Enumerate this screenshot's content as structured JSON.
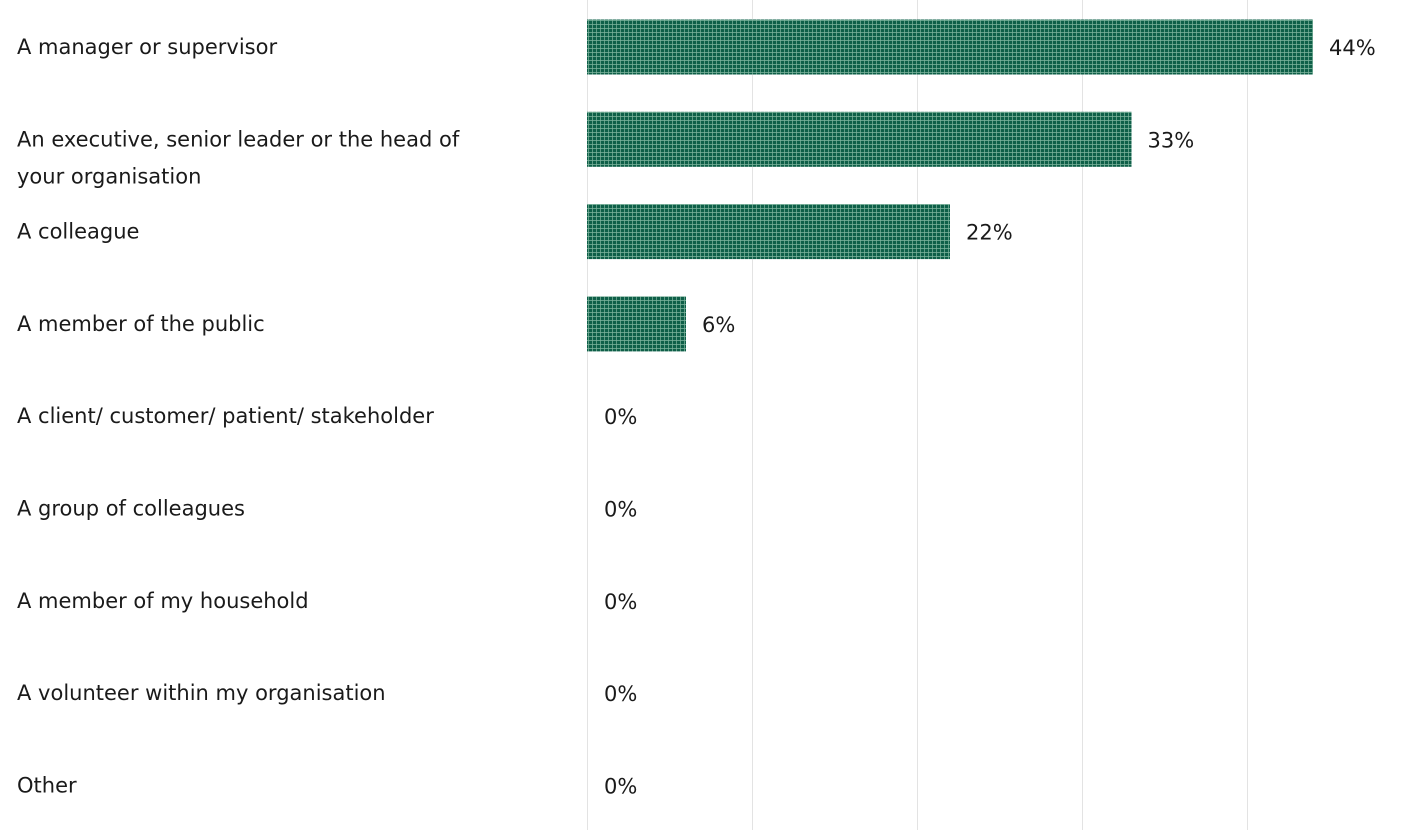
{
  "chart_data": {
    "type": "bar",
    "orientation": "horizontal",
    "categories": [
      "A manager or supervisor",
      "An executive, senior leader or the head of your organisation",
      "A colleague",
      "A member of the public",
      "A client/ customer/ patient/ stakeholder",
      "A group of colleagues",
      "A member of my household",
      "A volunteer within my organisation",
      "Other"
    ],
    "category_lines": [
      [
        "A manager or supervisor"
      ],
      [
        "An executive, senior leader or the head of",
        "your organisation"
      ],
      [
        "A colleague"
      ],
      [
        "A member of the public"
      ],
      [
        "A client/ customer/ patient/ stakeholder"
      ],
      [
        "A group of colleagues"
      ],
      [
        "A member of my household"
      ],
      [
        "A volunteer within my organisation"
      ],
      [
        "Other"
      ]
    ],
    "values": [
      44,
      33,
      22,
      6,
      0,
      0,
      0,
      0,
      0
    ],
    "value_labels": [
      "44%",
      "33%",
      "22%",
      "6%",
      "0%",
      "0%",
      "0%",
      "0%",
      "0%"
    ],
    "xlim": [
      0,
      50
    ],
    "gridlines": [
      0,
      10,
      20,
      30,
      40
    ],
    "grid": true,
    "legend": "none",
    "bar_color": "#0e5f48",
    "bar_texture_color": "#7fb59f"
  }
}
